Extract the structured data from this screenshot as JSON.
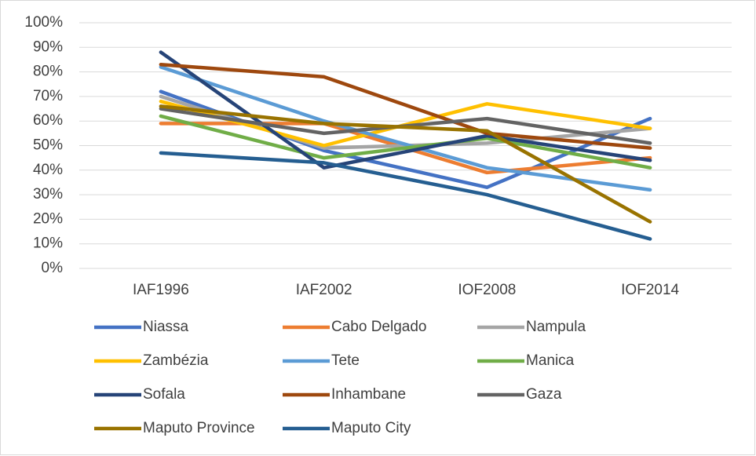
{
  "chart_data": {
    "type": "line",
    "categories": [
      "IAF1996",
      "IAF2002",
      "IOF2008",
      "IOF2014"
    ],
    "series": [
      {
        "name": "Niassa",
        "color": "#4472c4",
        "values": [
          72,
          48,
          33,
          61
        ]
      },
      {
        "name": "Cabo Delgado",
        "color": "#ed7d31",
        "values": [
          59,
          59,
          39,
          45
        ]
      },
      {
        "name": "Nampula",
        "color": "#a5a5a5",
        "values": [
          70,
          49,
          51,
          57
        ]
      },
      {
        "name": "Zambézia",
        "color": "#ffc000",
        "values": [
          68,
          50,
          67,
          57
        ]
      },
      {
        "name": "Tete",
        "color": "#5b9bd5",
        "values": [
          82,
          60,
          41,
          32
        ]
      },
      {
        "name": "Manica",
        "color": "#70ad47",
        "values": [
          62,
          45,
          53,
          41
        ]
      },
      {
        "name": "Sofala",
        "color": "#264478",
        "values": [
          88,
          41,
          54,
          44
        ]
      },
      {
        "name": "Inhambane",
        "color": "#9e480e",
        "values": [
          83,
          78,
          55,
          49
        ]
      },
      {
        "name": "Gaza",
        "color": "#636363",
        "values": [
          65,
          55,
          61,
          51
        ]
      },
      {
        "name": "Maputo Province",
        "color": "#997300",
        "values": [
          66,
          59,
          56,
          19
        ]
      },
      {
        "name": "Maputo City",
        "color": "#255e91",
        "values": [
          47,
          43,
          30,
          12
        ]
      }
    ],
    "ylim": [
      0,
      100
    ],
    "yticks": [
      {
        "value": 0,
        "label": "0%"
      },
      {
        "value": 10,
        "label": "10%"
      },
      {
        "value": 20,
        "label": "20%"
      },
      {
        "value": 30,
        "label": "30%"
      },
      {
        "value": 40,
        "label": "40%"
      },
      {
        "value": 50,
        "label": "50%"
      },
      {
        "value": 60,
        "label": "60%"
      },
      {
        "value": 70,
        "label": "70%"
      },
      {
        "value": 80,
        "label": "80%"
      },
      {
        "value": 90,
        "label": "90%"
      },
      {
        "value": 100,
        "label": "100%"
      }
    ],
    "grid": true,
    "legend": "bottom"
  }
}
